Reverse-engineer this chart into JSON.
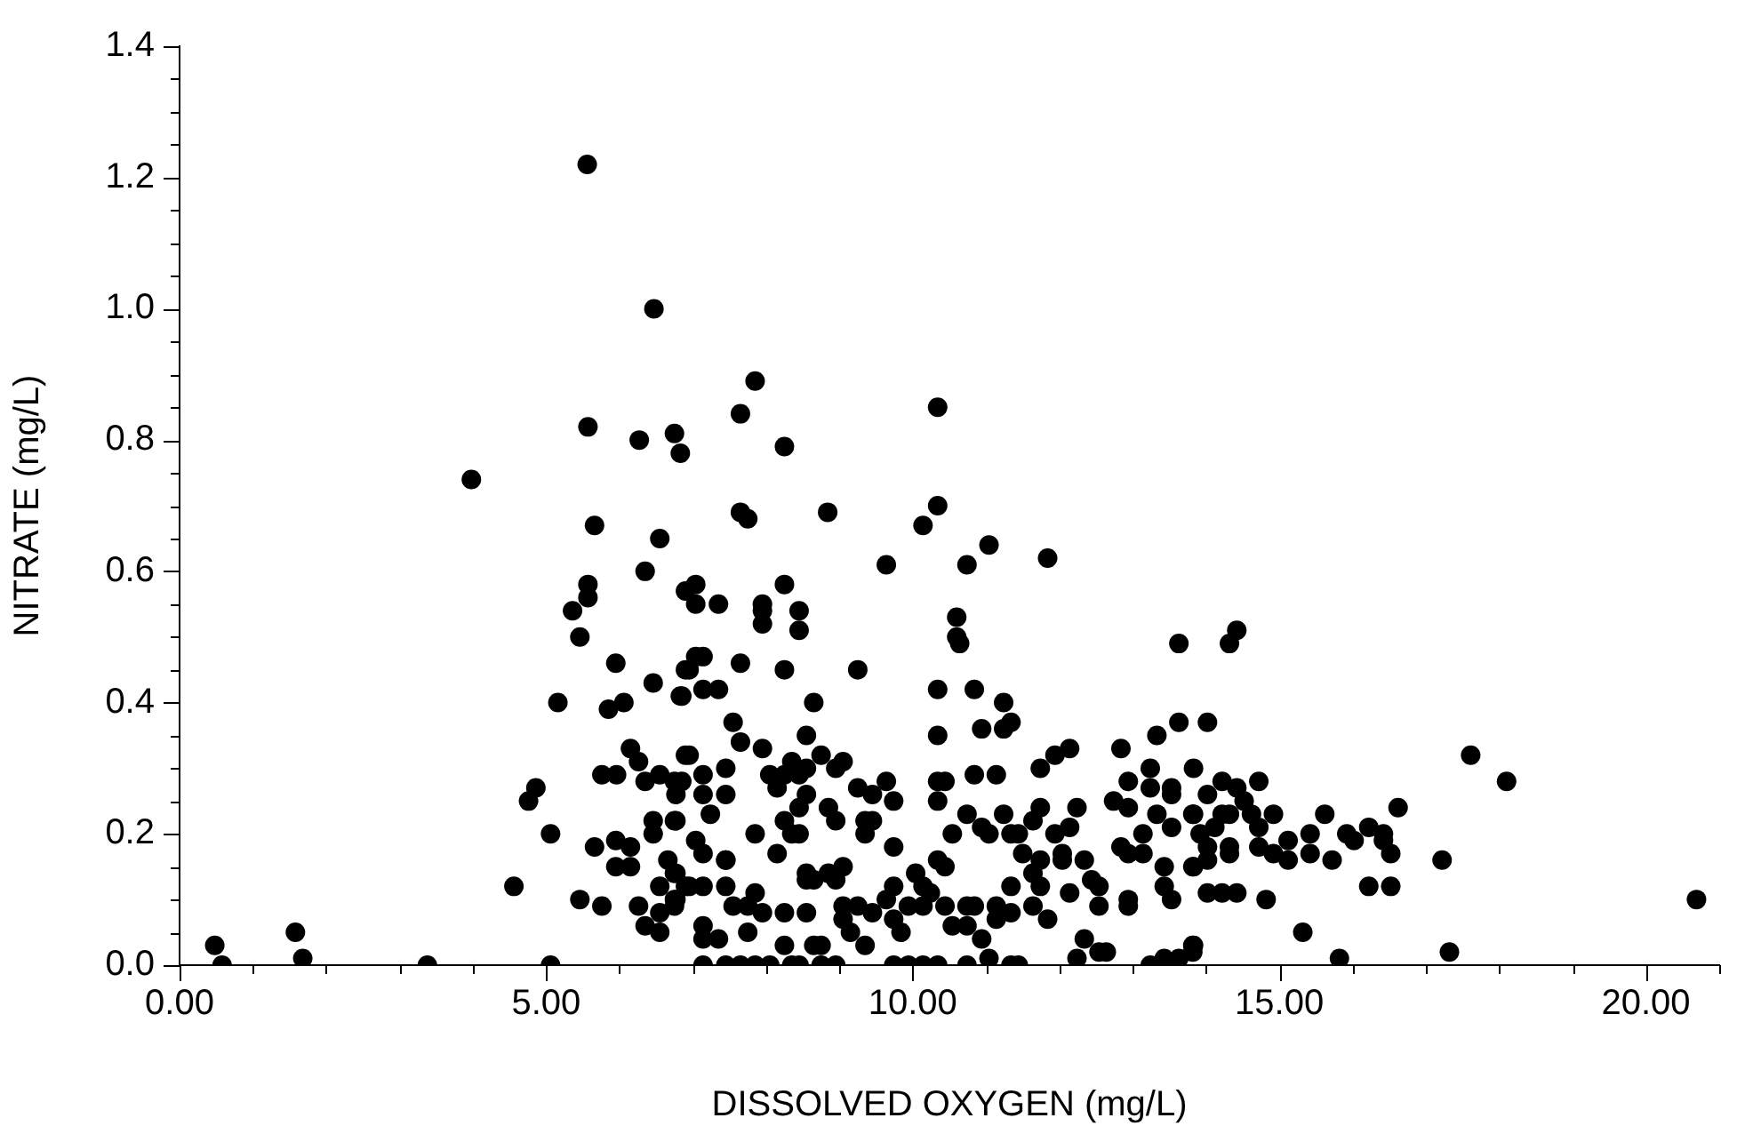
{
  "chart_data": {
    "type": "scatter",
    "xlabel": "DISSOLVED OXYGEN (mg/L)",
    "ylabel": "NITRATE (mg/L)",
    "marker": "circle",
    "xlim": [
      0,
      21
    ],
    "ylim": [
      0,
      1.4
    ],
    "xticks": [
      {
        "value": 0,
        "label": "0.00"
      },
      {
        "value": 1,
        "label": null
      },
      {
        "value": 2,
        "label": null
      },
      {
        "value": 3,
        "label": null
      },
      {
        "value": 4,
        "label": null
      },
      {
        "value": 5,
        "label": "5.00"
      },
      {
        "value": 6,
        "label": null
      },
      {
        "value": 7,
        "label": null
      },
      {
        "value": 8,
        "label": null
      },
      {
        "value": 9,
        "label": null
      },
      {
        "value": 10,
        "label": "10.00"
      },
      {
        "value": 11,
        "label": null
      },
      {
        "value": 12,
        "label": null
      },
      {
        "value": 13,
        "label": null
      },
      {
        "value": 14,
        "label": null
      },
      {
        "value": 15,
        "label": "15.00"
      },
      {
        "value": 16,
        "label": null
      },
      {
        "value": 17,
        "label": null
      },
      {
        "value": 18,
        "label": null
      },
      {
        "value": 19,
        "label": null
      },
      {
        "value": 20,
        "label": "20.00"
      },
      {
        "value": 21,
        "label": null
      }
    ],
    "yticks": [
      {
        "value": 0,
        "label": "0.0"
      },
      {
        "value": 0.05,
        "label": null
      },
      {
        "value": 0.1,
        "label": null
      },
      {
        "value": 0.15,
        "label": null
      },
      {
        "value": 0.2,
        "label": "0.2"
      },
      {
        "value": 0.25,
        "label": null
      },
      {
        "value": 0.3,
        "label": null
      },
      {
        "value": 0.35,
        "label": null
      },
      {
        "value": 0.4,
        "label": "0.4"
      },
      {
        "value": 0.45,
        "label": null
      },
      {
        "value": 0.5,
        "label": null
      },
      {
        "value": 0.55,
        "label": null
      },
      {
        "value": 0.6,
        "label": "0.6"
      },
      {
        "value": 0.65,
        "label": null
      },
      {
        "value": 0.7,
        "label": null
      },
      {
        "value": 0.75,
        "label": null
      },
      {
        "value": 0.8,
        "label": "0.8"
      },
      {
        "value": 0.85,
        "label": null
      },
      {
        "value": 0.9,
        "label": null
      },
      {
        "value": 0.95,
        "label": null
      },
      {
        "value": 1.0,
        "label": "1.0"
      },
      {
        "value": 1.05,
        "label": null
      },
      {
        "value": 1.1,
        "label": null
      },
      {
        "value": 1.15,
        "label": null
      },
      {
        "value": 1.2,
        "label": "1.2"
      },
      {
        "value": 1.25,
        "label": null
      },
      {
        "value": 1.3,
        "label": null
      },
      {
        "value": 1.35,
        "label": null
      },
      {
        "value": 1.4,
        "label": "1.4"
      }
    ],
    "series": [
      {
        "color": "#000000",
        "x": [
          0.48,
          0.58,
          1.58,
          1.68,
          3.38,
          3.98,
          6.47,
          5.57,
          6.27,
          6.75,
          6.83,
          5.66,
          6.55,
          6.35,
          5.57,
          5.57,
          5.36,
          5.46,
          6.9,
          5.95,
          6.46,
          6.9,
          6.83,
          5.16,
          5.85,
          6.06,
          6.15,
          6.26,
          5.76,
          5.96,
          6.55,
          6.35,
          6.75,
          6.9,
          4.86,
          4.76,
          6.46,
          6.75,
          6.46,
          5.06,
          5.66,
          5.95,
          6.15,
          5.95,
          6.15,
          6.66,
          6.75,
          6.55,
          4.56,
          6.9,
          5.46,
          5.76,
          6.26,
          6.75,
          6.75,
          6.55,
          6.35,
          6.55,
          5.06,
          5.56,
          7.85,
          7.65,
          10.34,
          8.25,
          7.65,
          7.75,
          8.84,
          10.34,
          10.14,
          11.04,
          9.64,
          10.74,
          11.84,
          7.04,
          7.04,
          7.35,
          8.25,
          7.95,
          7.95,
          7.95,
          8.45,
          8.45,
          10.6,
          10.6,
          10.64,
          7.04,
          7.14,
          6.95,
          7.65,
          8.25,
          9.25,
          6.85,
          7.14,
          7.35,
          8.65,
          10.34,
          10.84,
          11.24,
          11.34,
          11.24,
          10.94,
          7.55,
          7.65,
          7.95,
          8.55,
          10.34,
          6.95,
          7.14,
          7.45,
          8.05,
          8.35,
          8.25,
          8.15,
          8.45,
          8.55,
          8.75,
          8.95,
          9.05,
          9.25,
          9.45,
          9.64,
          9.74,
          10.34,
          10.44,
          10.34,
          10.84,
          11.14,
          11.74,
          11.94,
          12.14,
          12.84,
          13.33,
          13.63,
          13.63,
          6.85,
          6.77,
          7.14,
          7.45,
          7.24,
          6.77,
          8.25,
          8.45,
          8.55,
          8.85,
          8.95,
          8.35,
          8.45,
          7.85,
          7.04,
          7.14,
          7.45,
          8.15,
          8.55,
          8.65,
          8.85,
          9.05,
          9.35,
          9.45,
          9.35,
          9.74,
          10.54,
          10.74,
          10.94,
          11.04,
          11.24,
          11.34,
          11.44,
          11.64,
          11.74,
          11.94,
          12.14,
          12.24,
          12.74,
          12.94,
          12.94,
          13.24,
          13.24,
          13.53,
          13.53,
          13.33,
          13.53,
          13.83,
          13.83,
          12.84,
          12.94,
          13.14,
          13.14,
          13.43,
          13.43,
          13.53,
          13.83,
          11.5,
          11.74,
          11.64,
          11.74,
          11.64,
          11.84,
          12.04,
          12.04,
          12.34,
          12.14,
          12.44,
          12.54,
          12.54,
          12.94,
          12.94,
          6.77,
          6.77,
          6.95,
          7.14,
          7.45,
          7.45,
          7.55,
          7.75,
          7.85,
          7.95,
          7.14,
          7.14,
          7.35,
          7.75,
          8.25,
          8.55,
          8.25,
          8.65,
          8.75,
          8.55,
          8.95,
          9.05,
          9.05,
          9.25,
          9.15,
          9.35,
          9.45,
          9.64,
          9.74,
          9.74,
          9.84,
          9.94,
          10.04,
          10.14,
          10.24,
          10.14,
          10.34,
          10.44,
          10.44,
          10.54,
          10.74,
          10.84,
          10.74,
          10.94,
          11.04,
          11.14,
          11.14,
          11.34,
          11.34,
          12.34,
          12.24,
          12.54,
          12.64,
          13.24,
          13.43,
          13.63,
          13.83,
          7.14,
          7.45,
          7.65,
          7.85,
          8.05,
          8.35,
          8.45,
          8.75,
          8.95,
          9.74,
          9.94,
          10.14,
          10.34,
          10.74,
          11.34,
          11.44,
          14.42,
          14.32,
          14.02,
          17.61,
          18.1,
          14.22,
          14.72,
          14.02,
          14.42,
          14.52,
          14.62,
          14.22,
          14.32,
          14.92,
          15.62,
          16.62,
          13.82,
          14.72,
          14.12,
          13.92,
          15.12,
          15.42,
          15.42,
          15.92,
          16.02,
          16.22,
          16.42,
          16.42,
          16.52,
          14.02,
          14.32,
          14.32,
          14.72,
          14.92,
          15.12,
          15.72,
          17.22,
          13.82,
          14.02,
          14.02,
          14.22,
          14.42,
          14.82,
          16.22,
          16.52,
          20.69,
          15.32,
          13.82,
          13.82,
          15.82,
          17.32
        ],
        "values": [
          0.03,
          0,
          0.05,
          0.01,
          0,
          0.74,
          1.0,
          0.82,
          0.8,
          0.81,
          0.78,
          0.67,
          0.65,
          0.6,
          0.58,
          0.56,
          0.54,
          0.5,
          0.57,
          0.46,
          0.43,
          0.45,
          0.41,
          0.4,
          0.39,
          0.4,
          0.33,
          0.31,
          0.29,
          0.29,
          0.29,
          0.28,
          0.28,
          0.32,
          0.27,
          0.25,
          0.22,
          0.22,
          0.2,
          0.2,
          0.18,
          0.19,
          0.18,
          0.15,
          0.15,
          0.16,
          0.14,
          0.12,
          0.12,
          0.12,
          0.1,
          0.09,
          0.09,
          0.1,
          0.09,
          0.08,
          0.06,
          0.05,
          0,
          1.22,
          0.89,
          0.84,
          0.85,
          0.79,
          0.69,
          0.68,
          0.69,
          0.7,
          0.67,
          0.64,
          0.61,
          0.61,
          0.62,
          0.58,
          0.55,
          0.55,
          0.58,
          0.55,
          0.54,
          0.52,
          0.54,
          0.51,
          0.53,
          0.5,
          0.49,
          0.47,
          0.47,
          0.45,
          0.46,
          0.45,
          0.45,
          0.41,
          0.42,
          0.42,
          0.4,
          0.42,
          0.42,
          0.4,
          0.37,
          0.36,
          0.36,
          0.37,
          0.34,
          0.33,
          0.35,
          0.35,
          0.32,
          0.29,
          0.3,
          0.29,
          0.31,
          0.29,
          0.27,
          0.29,
          0.3,
          0.32,
          0.3,
          0.31,
          0.27,
          0.26,
          0.28,
          0.25,
          0.28,
          0.28,
          0.25,
          0.29,
          0.29,
          0.3,
          0.32,
          0.33,
          0.33,
          0.35,
          0.37,
          0.49,
          0.28,
          0.26,
          0.26,
          0.26,
          0.23,
          0.22,
          0.22,
          0.24,
          0.26,
          0.24,
          0.22,
          0.2,
          0.2,
          0.2,
          0.19,
          0.17,
          0.16,
          0.17,
          0.14,
          0.13,
          0.14,
          0.15,
          0.22,
          0.22,
          0.2,
          0.18,
          0.2,
          0.23,
          0.21,
          0.2,
          0.23,
          0.2,
          0.2,
          0.22,
          0.24,
          0.2,
          0.21,
          0.24,
          0.25,
          0.24,
          0.28,
          0.3,
          0.27,
          0.27,
          0.26,
          0.23,
          0.21,
          0.3,
          0.23,
          0.18,
          0.17,
          0.2,
          0.17,
          0.15,
          0.12,
          0.1,
          0.15,
          0.17,
          0.16,
          0.14,
          0.12,
          0.09,
          0.07,
          0.17,
          0.16,
          0.16,
          0.11,
          0.13,
          0.12,
          0.09,
          0.1,
          0.09,
          0.14,
          0.1,
          0.12,
          0.12,
          0.12,
          0.16,
          0.09,
          0.09,
          0.11,
          0.08,
          0.06,
          0.04,
          0.04,
          0.05,
          0.08,
          0.08,
          0.03,
          0.03,
          0.03,
          0.13,
          0.13,
          0.09,
          0.07,
          0.09,
          0.05,
          0.03,
          0.08,
          0.1,
          0.12,
          0.07,
          0.05,
          0.09,
          0.14,
          0.12,
          0.11,
          0.09,
          0.16,
          0.15,
          0.09,
          0.06,
          0.09,
          0.09,
          0.06,
          0.04,
          0.01,
          0.09,
          0.07,
          0.08,
          0.12,
          0.04,
          0.01,
          0.02,
          0.02,
          0,
          0.01,
          0.01,
          0.03,
          0,
          0,
          0,
          0,
          0,
          0,
          0,
          0,
          0,
          0,
          0,
          0,
          0,
          0,
          0,
          0,
          0.51,
          0.49,
          0.37,
          0.32,
          0.28,
          0.28,
          0.28,
          0.26,
          0.27,
          0.25,
          0.23,
          0.23,
          0.23,
          0.23,
          0.23,
          0.24,
          0.23,
          0.21,
          0.21,
          0.2,
          0.19,
          0.2,
          0.17,
          0.2,
          0.19,
          0.21,
          0.2,
          0.19,
          0.17,
          0.18,
          0.18,
          0.17,
          0.18,
          0.17,
          0.16,
          0.16,
          0.16,
          0.15,
          0.16,
          0.11,
          0.11,
          0.11,
          0.1,
          0.12,
          0.12,
          0.1,
          0.05,
          0.03,
          0.02,
          0.01,
          0.02
        ]
      }
    ]
  }
}
